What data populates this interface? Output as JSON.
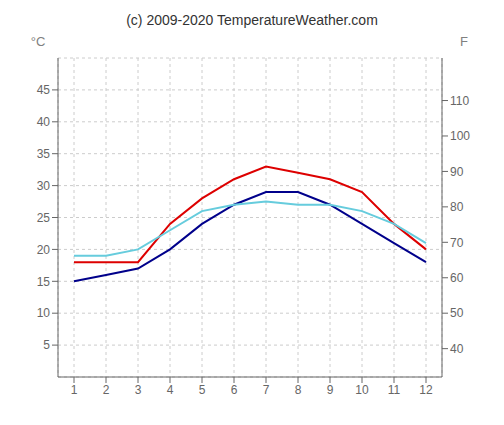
{
  "chart_data": {
    "type": "line",
    "title": "(c) 2009-2020 TemperatureWeather.com",
    "x": [
      1,
      2,
      3,
      4,
      5,
      6,
      7,
      8,
      9,
      10,
      11,
      12
    ],
    "series": [
      {
        "color": "#dd0000",
        "values": [
          18,
          18,
          18,
          24,
          28,
          31,
          33,
          32,
          31,
          29,
          24,
          20
        ]
      },
      {
        "color": "#00008b",
        "values": [
          15,
          16,
          17,
          20,
          24,
          27,
          29,
          29,
          27,
          24,
          21,
          18
        ]
      },
      {
        "color": "#66ccdd",
        "values": [
          19,
          19,
          20,
          23,
          26,
          27,
          27.5,
          27,
          27,
          26,
          24,
          21
        ]
      }
    ],
    "xlim": [
      0.5,
      12.5
    ],
    "xticks": [
      1,
      2,
      3,
      4,
      5,
      6,
      7,
      8,
      9,
      10,
      11,
      12
    ],
    "ylim": [
      0,
      50
    ],
    "yticks": [
      5,
      10,
      15,
      20,
      25,
      30,
      35,
      40,
      45
    ],
    "ylabel": "°C",
    "y2lim": [
      32,
      122
    ],
    "y2ticks": [
      40,
      50,
      60,
      70,
      80,
      90,
      100,
      110
    ],
    "y2label": "F",
    "grid": true
  }
}
